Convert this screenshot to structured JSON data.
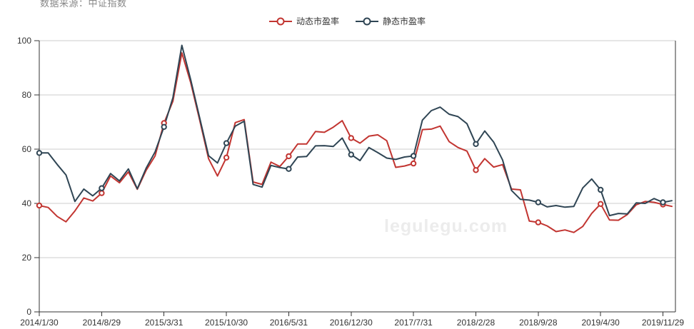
{
  "source_note": "数据来源：中证指数",
  "watermark": "legulegu.com",
  "legend": {
    "items": [
      {
        "label": "动态市盈率",
        "color": "#c23531"
      },
      {
        "label": "静态市盈率",
        "color": "#2f4554"
      }
    ]
  },
  "colors": {
    "dynamic_pe": "#c23531",
    "static_pe": "#2f4554",
    "axis": "#333333",
    "gridline": "#cccccc",
    "axis_label": "#333333",
    "watermark": "#ececec",
    "source_note": "#888888",
    "background": "#ffffff"
  },
  "chart_data": {
    "type": "line",
    "title": "",
    "xlabel": "",
    "ylabel": "",
    "x_tick_labels": [
      "2014/1/30",
      "2014/8/29",
      "2015/3/31",
      "2015/10/30",
      "2016/5/31",
      "2016/12/30",
      "2017/7/31",
      "2018/2/28",
      "2018/9/28",
      "2019/4/30",
      "2019/11/29"
    ],
    "x_tick_indices": [
      0,
      7,
      14,
      21,
      28,
      35,
      42,
      49,
      56,
      63,
      70
    ],
    "x_point_count": 72,
    "x_note": "monthly points, 2014/1/30 through 2019/11/29 plus one latest point at right edge",
    "ylim": [
      0,
      100
    ],
    "y_ticks": [
      0,
      20,
      40,
      60,
      80,
      100
    ],
    "grid": "horizontal-only",
    "legend_position": "top-center",
    "marker_indices": [
      0,
      7,
      14,
      21,
      28,
      35,
      42,
      49,
      56,
      63,
      70
    ],
    "series": [
      {
        "name": "动态市盈率",
        "color": "#c23531",
        "values": [
          39.2,
          38.5,
          35.2,
          33.2,
          37.2,
          42.0,
          40.9,
          43.8,
          50.1,
          47.6,
          51.6,
          45.2,
          52.2,
          57.5,
          69.6,
          77.7,
          95.5,
          84.5,
          70.8,
          56.5,
          50.1,
          56.9,
          69.8,
          70.9,
          47.9,
          47.0,
          55.2,
          53.6,
          57.4,
          61.9,
          61.9,
          66.5,
          66.2,
          68.1,
          70.5,
          64.1,
          62.2,
          64.8,
          65.3,
          63.1,
          53.3,
          53.8,
          54.7,
          67.2,
          67.4,
          68.5,
          62.8,
          60.6,
          59.3,
          52.3,
          56.5,
          53.4,
          54.3,
          45.3,
          45.0,
          33.5,
          33.0,
          31.7,
          29.6,
          30.2,
          29.3,
          31.5,
          36.3,
          39.8,
          33.9,
          33.8,
          35.9,
          39.5,
          40.7,
          40.4,
          39.6,
          38.9
        ]
      },
      {
        "name": "静态市盈率",
        "color": "#2f4554",
        "values": [
          58.6,
          58.6,
          54.4,
          50.5,
          40.7,
          45.3,
          42.8,
          45.6,
          51.0,
          48.3,
          52.7,
          45.4,
          53.0,
          59.0,
          68.2,
          79.0,
          98.3,
          85.6,
          71.6,
          57.6,
          54.9,
          62.2,
          68.5,
          70.3,
          47.0,
          46.0,
          54.0,
          53.2,
          52.7,
          57.1,
          57.3,
          61.2,
          61.3,
          61.0,
          64.1,
          58.0,
          55.8,
          60.6,
          58.7,
          56.7,
          56.2,
          57.1,
          57.5,
          70.7,
          74.2,
          75.5,
          72.9,
          72.0,
          69.4,
          61.9,
          66.7,
          62.6,
          56.0,
          44.8,
          41.5,
          41.2,
          40.4,
          38.7,
          39.2,
          38.6,
          38.9,
          45.7,
          49.0,
          45.0,
          35.5,
          36.3,
          36.1,
          40.2,
          40.0,
          41.8,
          40.4,
          41.0
        ]
      }
    ]
  }
}
